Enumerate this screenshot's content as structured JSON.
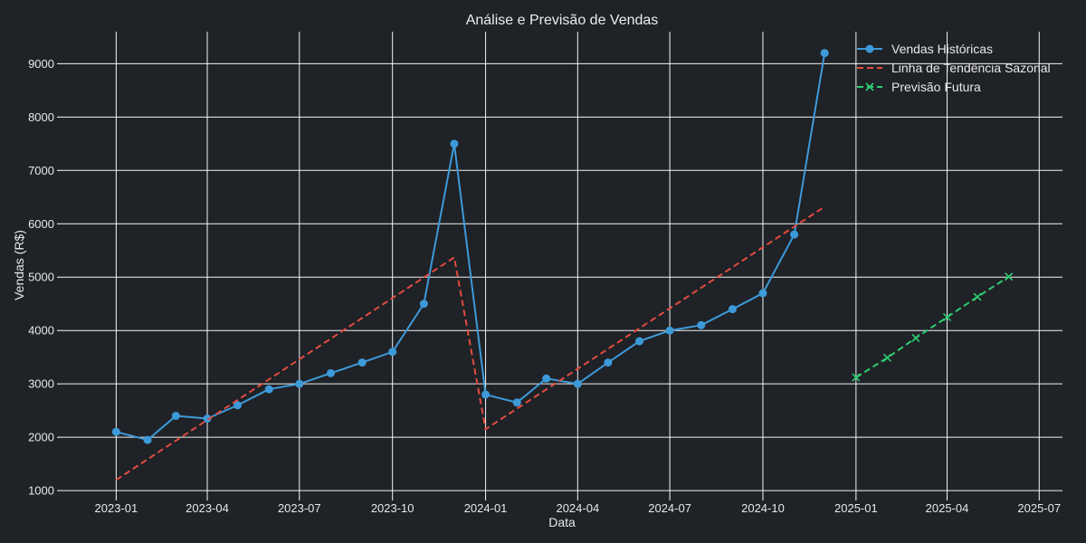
{
  "chart_data": {
    "type": "line",
    "title": "Análise e Previsão de Vendas",
    "xlabel": "Data",
    "ylabel": "Vendas (R$)",
    "background": "#1f2227",
    "grid": true,
    "legend_position": "top-right",
    "xlim": [
      "2022-11-08",
      "2025-07-24"
    ],
    "ylim": [
      900,
      9600
    ],
    "x_ticks": [
      "2023-01",
      "2023-04",
      "2023-07",
      "2023-10",
      "2024-01",
      "2024-04",
      "2024-07",
      "2024-10",
      "2025-01",
      "2025-04",
      "2025-07"
    ],
    "y_ticks": [
      1000,
      2000,
      3000,
      4000,
      5000,
      6000,
      7000,
      8000,
      9000
    ],
    "series": [
      {
        "name": "Vendas Históricas",
        "style": "solid",
        "marker": "circle",
        "color": "#3d9ad9",
        "x": [
          "2023-01-01",
          "2023-02-01",
          "2023-03-01",
          "2023-04-01",
          "2023-05-01",
          "2023-06-01",
          "2023-07-01",
          "2023-08-01",
          "2023-09-01",
          "2023-10-01",
          "2023-11-01",
          "2023-12-01",
          "2024-01-01",
          "2024-02-01",
          "2024-03-01",
          "2024-04-01",
          "2024-05-01",
          "2024-06-01",
          "2024-07-01",
          "2024-08-01",
          "2024-09-01",
          "2024-10-01",
          "2024-11-01",
          "2024-12-01"
        ],
        "values": [
          2100,
          1950,
          2400,
          2350,
          2600,
          2900,
          3000,
          3200,
          3400,
          3600,
          4500,
          7500,
          2800,
          2650,
          3100,
          3000,
          3400,
          3800,
          4000,
          4100,
          4400,
          4700,
          5800,
          9200
        ]
      },
      {
        "name": "Linha de Tendência Sazonal",
        "style": "dashed",
        "marker": "none",
        "color": "#e24c3f",
        "x": [
          "2023-01-01",
          "2023-12-01",
          "2024-01-01",
          "2024-12-01"
        ],
        "values": [
          1200,
          5370,
          2150,
          6320
        ]
      },
      {
        "name": "Previsão Futura",
        "style": "dashed",
        "marker": "x",
        "color": "#2ecc71",
        "x": [
          "2025-01-01",
          "2025-02-01",
          "2025-03-01",
          "2025-04-01",
          "2025-05-01",
          "2025-06-01"
        ],
        "values": [
          3120,
          3490,
          3860,
          4250,
          4630,
          5010
        ]
      }
    ]
  }
}
